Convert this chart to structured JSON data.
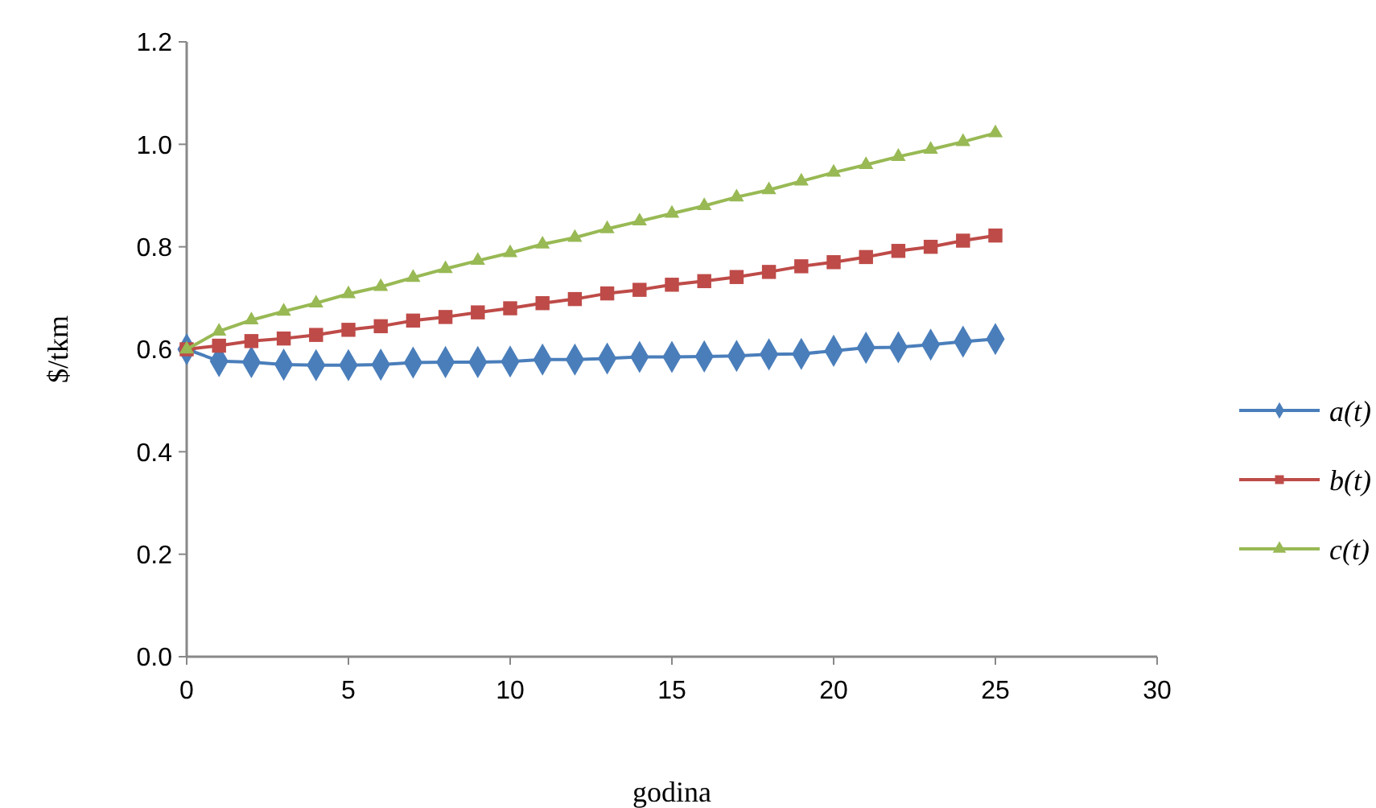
{
  "chart_data": {
    "type": "line",
    "xlabel": "godina",
    "ylabel": "$/tkm",
    "x": [
      0,
      1,
      2,
      3,
      4,
      5,
      6,
      7,
      8,
      9,
      10,
      11,
      12,
      13,
      14,
      15,
      16,
      17,
      18,
      19,
      20,
      21,
      22,
      23,
      24,
      25
    ],
    "xlim": [
      0,
      30
    ],
    "xticks": [
      0,
      5,
      10,
      15,
      20,
      25,
      30
    ],
    "ylim": [
      0,
      1.2
    ],
    "yticks": [
      {
        "value": 0,
        "label": "0.0"
      },
      {
        "value": 0.2,
        "label": "0.2"
      },
      {
        "value": 0.4,
        "label": "0.4"
      },
      {
        "value": 0.6,
        "label": "0.6"
      },
      {
        "value": 0.8,
        "label": "0.8"
      },
      {
        "value": 1,
        "label": "1.0"
      },
      {
        "value": 1.2,
        "label": "1.2"
      }
    ],
    "grid": false,
    "legend": "right",
    "series": [
      {
        "name": "a(t)",
        "color": "#4a7ebb",
        "marker": "diamond",
        "values": [
          0.6,
          0.577,
          0.575,
          0.57,
          0.569,
          0.569,
          0.57,
          0.574,
          0.575,
          0.575,
          0.576,
          0.58,
          0.58,
          0.582,
          0.585,
          0.585,
          0.586,
          0.587,
          0.59,
          0.591,
          0.597,
          0.603,
          0.604,
          0.609,
          0.615,
          0.62
        ]
      },
      {
        "name": "b(t)",
        "color": "#be4b48",
        "marker": "square",
        "values": [
          0.6,
          0.607,
          0.616,
          0.621,
          0.628,
          0.638,
          0.645,
          0.656,
          0.663,
          0.672,
          0.68,
          0.69,
          0.698,
          0.709,
          0.716,
          0.726,
          0.733,
          0.741,
          0.751,
          0.762,
          0.77,
          0.78,
          0.792,
          0.8,
          0.812,
          0.822
        ]
      },
      {
        "name": "c(t)",
        "color": "#98b954",
        "marker": "triangle",
        "values": [
          0.6,
          0.635,
          0.657,
          0.674,
          0.69,
          0.708,
          0.722,
          0.74,
          0.757,
          0.773,
          0.788,
          0.805,
          0.818,
          0.835,
          0.85,
          0.865,
          0.88,
          0.897,
          0.911,
          0.928,
          0.945,
          0.96,
          0.976,
          0.99,
          1.005,
          1.022
        ]
      }
    ]
  }
}
